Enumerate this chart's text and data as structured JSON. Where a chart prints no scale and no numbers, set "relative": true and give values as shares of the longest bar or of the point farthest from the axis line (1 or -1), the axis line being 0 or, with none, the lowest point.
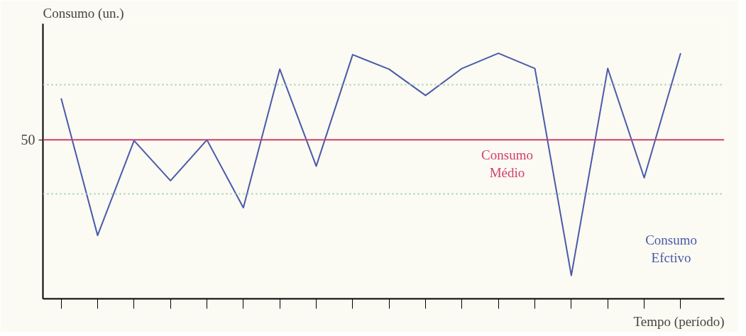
{
  "chart_data": {
    "type": "line",
    "relative": true,
    "xlabel": "Tempo (período)",
    "ylabel": "Consumo (un.)",
    "categories": [
      null,
      null,
      null,
      null,
      null,
      null,
      null,
      null,
      null,
      null,
      null,
      null,
      null,
      null,
      null,
      null,
      null,
      null
    ],
    "series": [
      {
        "name": "Consumo Efctivo",
        "color": "#4a5aa8",
        "values": [
          0.816,
          0.258,
          0.644,
          0.481,
          0.647,
          0.371,
          0.935,
          0.54,
          0.994,
          0.935,
          0.828,
          0.938,
          1.0,
          0.938,
          0.095,
          0.938,
          0.493,
          1.0
        ]
      }
    ],
    "ref_lines": [
      {
        "axis": "y",
        "value": 0.647,
        "label": "Consumo Médio",
        "color": "#d0406a",
        "line_style": "solid"
      },
      {
        "axis": "y",
        "value": 0.872,
        "label": null,
        "color": "#9ad0b0",
        "line_style": "dotted"
      },
      {
        "axis": "y",
        "value": 0.427,
        "label": null,
        "color": "#9ad0b0",
        "line_style": "dotted"
      }
    ],
    "annotations": [
      "50"
    ],
    "grid": false,
    "marker": "none",
    "line_style": "solid"
  }
}
